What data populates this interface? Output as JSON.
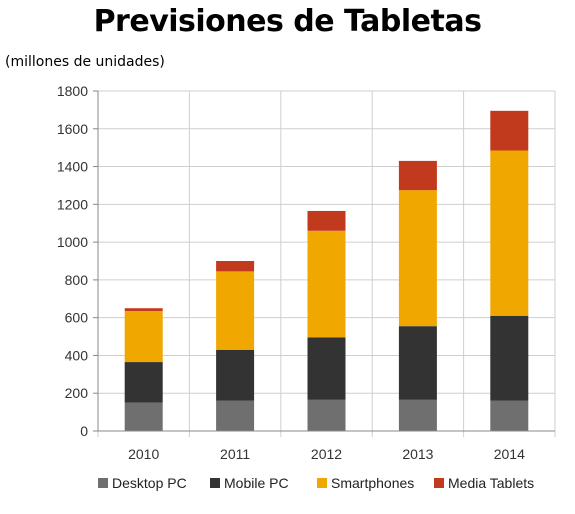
{
  "chart_data": {
    "type": "bar",
    "stacked": true,
    "title": "Previsiones de Tabletas",
    "subtitle": "(millones de unidades)",
    "xlabel": "",
    "ylabel": "",
    "categories": [
      "2010",
      "2011",
      "2012",
      "2013",
      "2014"
    ],
    "series": [
      {
        "name": "Desktop PC",
        "color": "#6f6f6f",
        "values": [
          150,
          160,
          165,
          165,
          160
        ]
      },
      {
        "name": "Mobile PC",
        "color": "#333333",
        "values": [
          215,
          270,
          330,
          390,
          450
        ]
      },
      {
        "name": "Smartphones",
        "color": "#f0a800",
        "values": [
          270,
          415,
          565,
          720,
          875
        ]
      },
      {
        "name": "Media Tablets",
        "color": "#c23a1e",
        "values": [
          15,
          55,
          105,
          155,
          210
        ]
      }
    ],
    "ylim": [
      0,
      1800
    ],
    "yticks": [
      "0",
      "200",
      "400",
      "600",
      "800",
      "1000",
      "1200",
      "1400",
      "1600",
      "1800"
    ],
    "grid": true,
    "legend_position": "bottom"
  }
}
